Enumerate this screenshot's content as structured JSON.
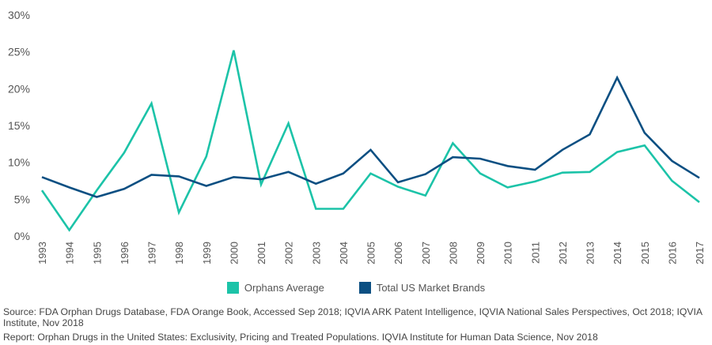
{
  "chart_data": {
    "type": "line",
    "title": "",
    "xlabel": "",
    "ylabel": "",
    "ylim": [
      0,
      30
    ],
    "yticks": [
      "0%",
      "5%",
      "10%",
      "15%",
      "20%",
      "25%",
      "30%"
    ],
    "grid": false,
    "legend_position": "bottom-center",
    "x": [
      "1993",
      "1994",
      "1995",
      "1996",
      "1997",
      "1998",
      "1999",
      "2000",
      "2001",
      "2002",
      "2003",
      "2004",
      "2005",
      "2006",
      "2007",
      "2008",
      "2009",
      "2010",
      "2011",
      "2012",
      "2013",
      "2014",
      "2015",
      "2016",
      "2017"
    ],
    "series": [
      {
        "name": "Orphans Average",
        "color": "#1cc3a8",
        "values": [
          6.2,
          0.8,
          6.2,
          11.3,
          18.0,
          3.2,
          10.8,
          25.2,
          7.0,
          15.3,
          3.7,
          3.7,
          8.5,
          6.7,
          5.5,
          12.6,
          8.5,
          6.6,
          7.4,
          8.6,
          8.7,
          11.4,
          12.3,
          7.5,
          4.6
        ]
      },
      {
        "name": "Total US Market Brands",
        "color": "#0b4f82",
        "values": [
          8.0,
          6.6,
          5.3,
          6.4,
          8.3,
          8.1,
          6.8,
          8.0,
          7.7,
          8.7,
          7.1,
          8.5,
          11.7,
          7.3,
          8.4,
          10.7,
          10.5,
          9.5,
          9.0,
          11.7,
          13.8,
          21.5,
          14.0,
          10.2,
          7.9
        ]
      }
    ]
  },
  "footer": {
    "source": "Source: FDA Orphan Drugs Database, FDA Orange Book, Accessed Sep 2018; IQVIA ARK Patent Intelligence, IQVIA National Sales Perspectives, Oct 2018; IQVIA Institute, Nov 2018",
    "report": "Report: Orphan Drugs in the United States: Exclusivity, Pricing and Treated Populations. IQVIA Institute for Human Data Science, Nov 2018"
  }
}
